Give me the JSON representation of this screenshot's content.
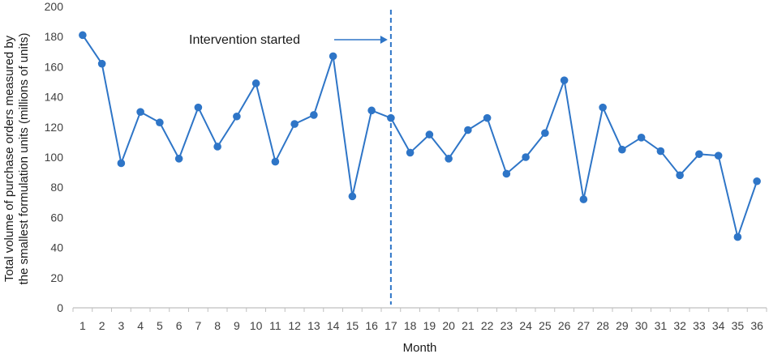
{
  "chart_data": {
    "type": "line",
    "xlabel": "Month",
    "ylabel_line1": "Total volume of purchase orders measured by",
    "ylabel_line2": "the smallest formulation units (millions of units)",
    "ylim": [
      0,
      200
    ],
    "yticks": [
      0,
      20,
      40,
      60,
      80,
      100,
      120,
      140,
      160,
      180,
      200
    ],
    "x": [
      1,
      2,
      3,
      4,
      5,
      6,
      7,
      8,
      9,
      10,
      11,
      12,
      13,
      14,
      15,
      16,
      17,
      18,
      19,
      20,
      21,
      22,
      23,
      24,
      25,
      26,
      27,
      28,
      29,
      30,
      31,
      32,
      33,
      34,
      35,
      36
    ],
    "series": [
      {
        "values": [
          181,
          162,
          96,
          130,
          123,
          99,
          133,
          107,
          127,
          149,
          97,
          122,
          128,
          167,
          74,
          131,
          126,
          103,
          115,
          99,
          118,
          126,
          89,
          100,
          116,
          151,
          72,
          133,
          105,
          113,
          104,
          88,
          102,
          101,
          47,
          84
        ],
        "color": "#2e75c7"
      }
    ],
    "annotation": {
      "text": "Intervention started",
      "at_x": 17
    },
    "grid": false,
    "legend": "none"
  }
}
